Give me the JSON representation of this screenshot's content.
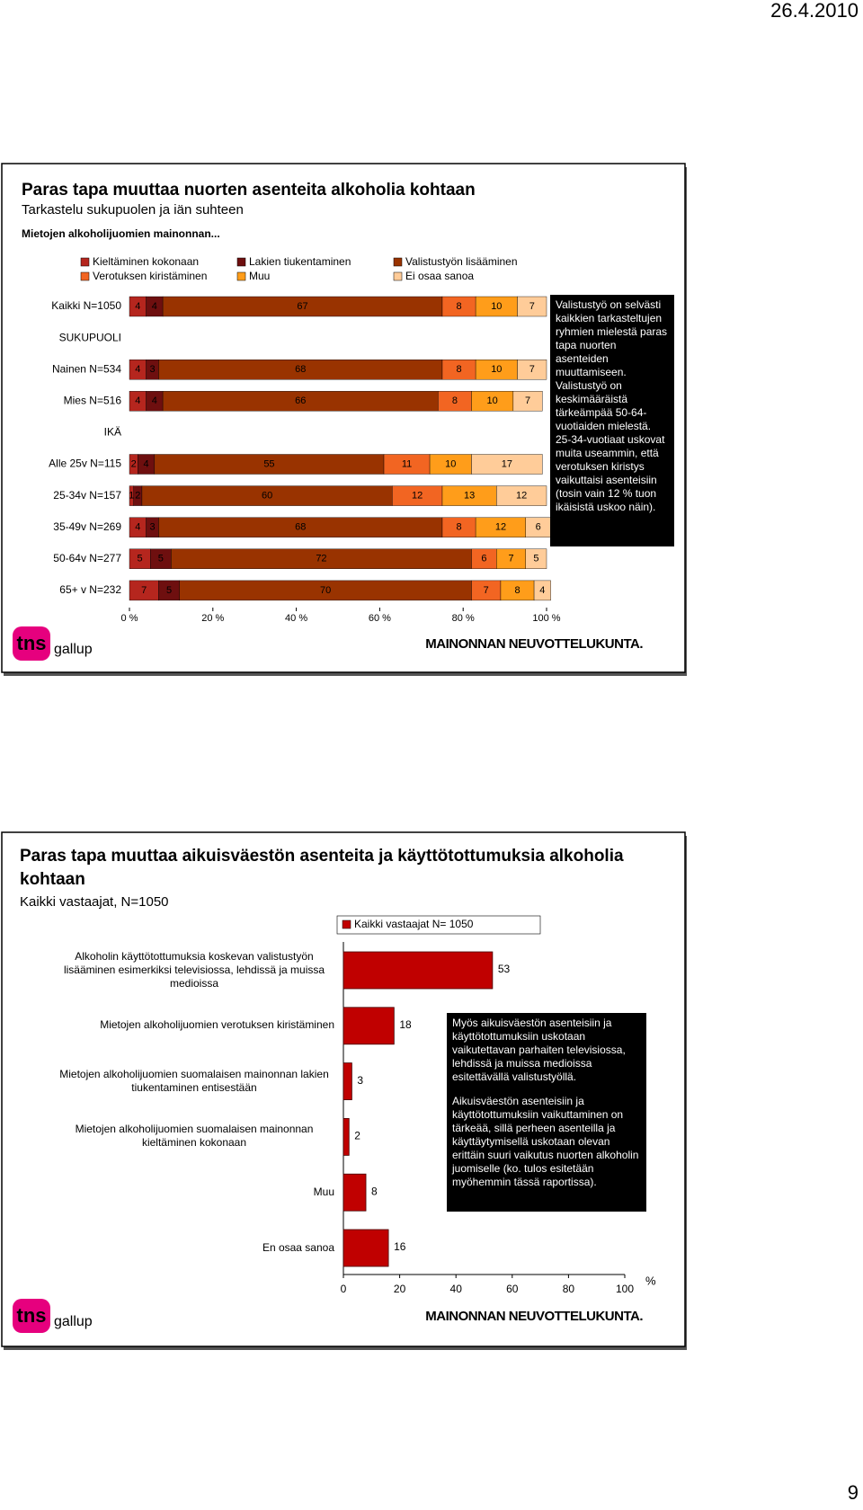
{
  "date": "26.4.2010",
  "page_number": "9",
  "footer_logos": {
    "tns": "tns",
    "gallup": "gallup",
    "council": "MAINONNAN NEUVOTTELUKUNTA."
  },
  "chart_data": [
    {
      "type": "stacked-bar-horizontal",
      "title": "Paras tapa muuttaa nuorten asenteita alkoholia kohtaan",
      "subtitle": "Tarkastelu sukupuolen ja iän suhteen",
      "legend_title": "Mietojen alkoholijuomien mainonnan...",
      "categories": [
        "Kaikki N=1050",
        "SUKUPUOLI",
        "Nainen N=534",
        "Mies N=516",
        "IKÄ",
        "Alle 25v N=115",
        "25-34v N=157",
        "35-49v N=269",
        "50-64v N=277",
        "65+ v N=232"
      ],
      "series": [
        {
          "name": "Kieltäminen kokonaan",
          "color": "#b5261e",
          "values": [
            4,
            null,
            4,
            4,
            null,
            2,
            1,
            4,
            5,
            7
          ]
        },
        {
          "name": "Lakien tiukentaminen",
          "color": "#6e0f0f",
          "values": [
            4,
            null,
            3,
            4,
            null,
            4,
            2,
            3,
            5,
            5
          ]
        },
        {
          "name": "Valistustyön lisääminen",
          "color": "#993300",
          "values": [
            67,
            null,
            68,
            66,
            null,
            55,
            60,
            68,
            72,
            70
          ]
        },
        {
          "name": "Verotuksen kiristäminen",
          "color": "#f26522",
          "values": [
            8,
            null,
            8,
            8,
            null,
            11,
            12,
            8,
            6,
            7
          ]
        },
        {
          "name": "Muu",
          "color": "#ff9d1a",
          "values": [
            10,
            null,
            10,
            10,
            null,
            10,
            13,
            12,
            7,
            8
          ]
        },
        {
          "name": "Ei osaa sanoa",
          "color": "#ffcc99",
          "values": [
            7,
            null,
            7,
            7,
            null,
            17,
            12,
            6,
            5,
            4
          ]
        }
      ],
      "xlim": [
        0,
        100
      ],
      "xticks": [
        {
          "value": 0,
          "label": "0 %"
        },
        {
          "value": 20,
          "label": "20 %"
        },
        {
          "value": 40,
          "label": "40 %"
        },
        {
          "value": 60,
          "label": "60 %"
        },
        {
          "value": 80,
          "label": "80 %"
        },
        {
          "value": 100,
          "label": "100 %"
        }
      ],
      "annotation": "Valistustyö on selvästi kaikkien tarkasteltujen ryhmien mielestä paras tapa nuorten asenteiden muuttamiseen. Valistustyö on keskimääräistä tärkeämpää 50-64-vuotiaiden mielestä. 25-34-vuotiaat uskovat muita useammin, että verotuksen kiristys vaikuttaisi asenteisiin (tosin vain 12 % tuon ikäisistä uskoo näin)."
    },
    {
      "type": "bar-horizontal",
      "title": "Paras tapa muuttaa aikuisväestön asenteita ja käyttötottumuksia alkoholia kohtaan",
      "subtitle": "Kaikki vastaajat, N=1050",
      "categories": [
        "Alkoholin käyttötottumuksia koskevan valistustyön lisääminen esimerkiksi televisiossa, lehdissä ja muissa medioissa",
        "Mietojen alkoholijuomien verotuksen kiristäminen",
        "Mietojen alkoholijuomien suomalaisen mainonnan lakien tiukentaminen entisestään",
        "Mietojen alkoholijuomien suomalaisen mainonnan kieltäminen kokonaan",
        "Muu",
        "En osaa sanoa"
      ],
      "series": [
        {
          "name": "Kaikki vastaajat N= 1050",
          "color": "#c00000",
          "values": [
            53,
            18,
            3,
            2,
            8,
            16
          ]
        }
      ],
      "xlim": [
        0,
        100
      ],
      "xticks": [
        0,
        20,
        40,
        60,
        80,
        100
      ],
      "x_label": "%",
      "annotation": [
        "Myös aikuisväestön asenteisiin ja käyttötottumuksiin uskotaan vaikutettavan parhaiten televisiossa, lehdissä ja muissa medioissa esitettävällä valistustyöllä.",
        "Aikuisväestön asenteisiin ja käyttötottumuksiin vaikuttaminen on tärkeää, sillä perheen asenteilla ja käyttäytymisellä uskotaan olevan erittäin suuri vaikutus nuorten alkoholin juomiselle (ko. tulos esitetään myöhemmin tässä raportissa)."
      ]
    }
  ]
}
